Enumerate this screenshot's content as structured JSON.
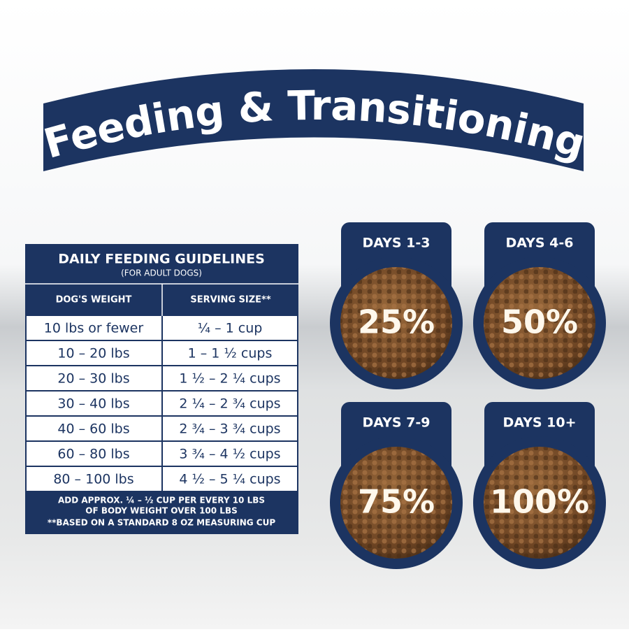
{
  "header": {
    "title": "Feeding & Transitioning"
  },
  "table": {
    "title": "DAILY FEEDING GUIDELINES",
    "subtitle": "(FOR ADULT DOGS)",
    "columns": [
      "DOG'S WEIGHT",
      "SERVING SIZE**"
    ],
    "rows": [
      [
        "10 lbs or fewer",
        "¼ – 1 cup"
      ],
      [
        "10 – 20 lbs",
        "1 – 1 ½ cups"
      ],
      [
        "20 – 30 lbs",
        "1 ½ – 2 ¼ cups"
      ],
      [
        "30 – 40 lbs",
        "2 ¼ – 2 ¾ cups"
      ],
      [
        "40 – 60 lbs",
        "2 ¾ – 3 ¾ cups"
      ],
      [
        "60 – 80 lbs",
        "3 ¾ – 4 ½ cups"
      ],
      [
        "80 – 100 lbs",
        "4 ½ – 5 ¼ cups"
      ]
    ],
    "notes": [
      "ADD APPROX. ¼ – ½ CUP PER EVERY 10 LBS",
      "OF BODY WEIGHT OVER 100 LBS",
      "**BASED ON A STANDARD 8 OZ MEASURING CUP"
    ]
  },
  "transition": [
    {
      "days": "DAYS 1-3",
      "percent": "25%"
    },
    {
      "days": "DAYS 4-6",
      "percent": "50%"
    },
    {
      "days": "DAYS 7-9",
      "percent": "75%"
    },
    {
      "days": "DAYS 10+",
      "percent": "100%"
    }
  ]
}
